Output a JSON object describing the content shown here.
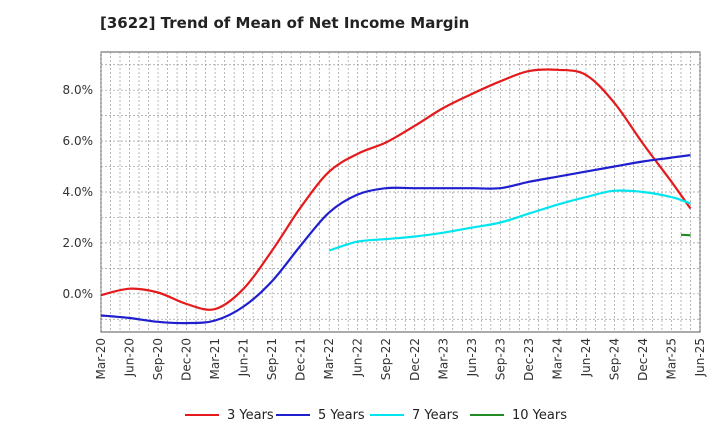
{
  "chart_data": {
    "type": "line",
    "title": "[3622]  Trend of Mean of Net Income Margin",
    "xlabel": "",
    "ylabel": "",
    "x_ticks": [
      "Mar-20",
      "Jun-20",
      "Sep-20",
      "Dec-20",
      "Mar-21",
      "Jun-21",
      "Sep-21",
      "Dec-21",
      "Mar-22",
      "Jun-22",
      "Sep-22",
      "Dec-22",
      "Mar-23",
      "Jun-23",
      "Sep-23",
      "Dec-23",
      "Mar-24",
      "Jun-24",
      "Sep-24",
      "Dec-24",
      "Mar-25",
      "Jun-25"
    ],
    "y_ticks": [
      "0.0%",
      "2.0%",
      "4.0%",
      "6.0%",
      "8.0%"
    ],
    "ylim": [
      -1.5,
      9.5
    ],
    "grid": true,
    "legend_position": "bottom",
    "series": [
      {
        "name": "3 Years",
        "color": "#e41a1c",
        "points": [
          [
            "Mar-20",
            -0.05
          ],
          [
            "Jun-20",
            0.2
          ],
          [
            "Sep-20",
            0.05
          ],
          [
            "Dec-20",
            -0.4
          ],
          [
            "Mar-21",
            -0.6
          ],
          [
            "Jun-21",
            0.2
          ],
          [
            "Sep-21",
            1.7
          ],
          [
            "Dec-21",
            3.4
          ],
          [
            "Mar-22",
            4.8
          ],
          [
            "Jun-22",
            5.5
          ],
          [
            "Sep-22",
            5.95
          ],
          [
            "Dec-22",
            6.6
          ],
          [
            "Mar-23",
            7.3
          ],
          [
            "Jun-23",
            7.85
          ],
          [
            "Sep-23",
            8.35
          ],
          [
            "Dec-23",
            8.75
          ],
          [
            "Mar-24",
            8.8
          ],
          [
            "Jun-24",
            8.6
          ],
          [
            "Sep-24",
            7.5
          ],
          [
            "Dec-24",
            5.9
          ],
          [
            "Mar-25",
            4.4
          ],
          [
            "May-25",
            3.35
          ]
        ]
      },
      {
        "name": "5 Years",
        "color": "#1f1fcf",
        "points": [
          [
            "Mar-20",
            -0.85
          ],
          [
            "Jun-20",
            -0.95
          ],
          [
            "Sep-20",
            -1.1
          ],
          [
            "Dec-20",
            -1.15
          ],
          [
            "Mar-21",
            -1.05
          ],
          [
            "Jun-21",
            -0.5
          ],
          [
            "Sep-21",
            0.5
          ],
          [
            "Dec-21",
            1.9
          ],
          [
            "Mar-22",
            3.2
          ],
          [
            "Jun-22",
            3.9
          ],
          [
            "Sep-22",
            4.15
          ],
          [
            "Dec-22",
            4.15
          ],
          [
            "Mar-23",
            4.15
          ],
          [
            "Jun-23",
            4.15
          ],
          [
            "Sep-23",
            4.15
          ],
          [
            "Dec-23",
            4.4
          ],
          [
            "Mar-24",
            4.6
          ],
          [
            "Jun-24",
            4.8
          ],
          [
            "Sep-24",
            5.0
          ],
          [
            "Dec-24",
            5.2
          ],
          [
            "Mar-25",
            5.35
          ],
          [
            "May-25",
            5.45
          ]
        ]
      },
      {
        "name": "7 Years",
        "color": "#00e5ee",
        "points": [
          [
            "Mar-22",
            1.7
          ],
          [
            "Jun-22",
            2.05
          ],
          [
            "Sep-22",
            2.15
          ],
          [
            "Dec-22",
            2.25
          ],
          [
            "Mar-23",
            2.4
          ],
          [
            "Jun-23",
            2.6
          ],
          [
            "Sep-23",
            2.8
          ],
          [
            "Dec-23",
            3.15
          ],
          [
            "Mar-24",
            3.5
          ],
          [
            "Jun-24",
            3.8
          ],
          [
            "Sep-24",
            4.05
          ],
          [
            "Dec-24",
            4.0
          ],
          [
            "Mar-25",
            3.8
          ],
          [
            "May-25",
            3.55
          ]
        ]
      },
      {
        "name": "10 Years",
        "color": "#228b22",
        "points": [
          [
            "Apr-25",
            2.32
          ],
          [
            "May-25",
            2.3
          ]
        ]
      }
    ]
  }
}
